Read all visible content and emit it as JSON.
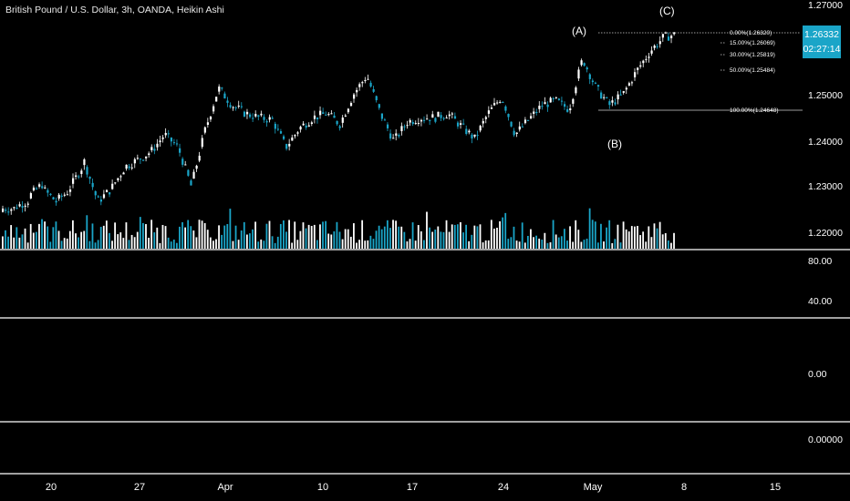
{
  "header": {
    "title": "British Pound / U.S. Dollar, 3h, OANDA, Heikin Ashi"
  },
  "price_badge": {
    "price": "1.26332",
    "countdown": "02:27:14"
  },
  "annotations": {
    "A": "(A)",
    "B": "(B)",
    "C": "(C)"
  },
  "fib_levels": [
    {
      "label": "0.00%(1.26320)",
      "price": 1.2632
    },
    {
      "label": "15.00%(1.26069)",
      "price": 1.26069
    },
    {
      "label": "30.00%(1.25819)",
      "price": 1.25819
    },
    {
      "label": "50.00%(1.25484)",
      "price": 1.25484
    },
    {
      "label": "100.00%(1.24648)",
      "price": 1.24648
    }
  ],
  "price_axis": {
    "ticks": [
      "1.27000",
      "1.25000",
      "1.24000",
      "1.23000",
      "1.22000"
    ]
  },
  "pane2_axis": {
    "ticks": [
      "80.00",
      "40.00"
    ]
  },
  "pane3_axis": {
    "ticks": [
      "0.00"
    ]
  },
  "pane4_axis": {
    "ticks": [
      "0.00000"
    ]
  },
  "time_axis": {
    "ticks": [
      "20",
      "27",
      "Apr",
      "10",
      "17",
      "24",
      "May",
      "8",
      "15"
    ]
  },
  "colors": {
    "up": "#ffffff",
    "down": "#1aa5c8",
    "background": "#000000",
    "separator": "#ffffff"
  },
  "chart_data": {
    "type": "candlestick",
    "chart_style": "Heikin Ashi",
    "symbol": "British Pound / U.S. Dollar",
    "interval": "3h",
    "source": "OANDA",
    "ylim": [
      1.2155,
      1.2705
    ],
    "x": [
      "20",
      "27",
      "Apr",
      "10",
      "17",
      "24",
      "May",
      "8",
      "15"
    ],
    "last_price": 1.26332,
    "swings": [
      {
        "label": "(A)",
        "price": 1.2632
      },
      {
        "label": "(B)",
        "price": 1.2465
      },
      {
        "label": "(C)",
        "price": 1.264
      }
    ],
    "path": [
      [
        1.222,
        1.222
      ],
      [
        1.2225,
        1.224
      ],
      [
        1.225,
        1.228
      ],
      [
        1.2265,
        1.2235
      ],
      [
        1.2238,
        1.2265
      ],
      [
        1.227,
        1.2325
      ],
      [
        1.2335,
        1.224
      ],
      [
        1.2235,
        1.2265
      ],
      [
        1.2265,
        1.2315
      ],
      [
        1.2318,
        1.2335
      ],
      [
        1.2335,
        1.2355
      ],
      [
        1.2355,
        1.2395
      ],
      [
        1.2395,
        1.2365
      ],
      [
        1.2365,
        1.227
      ],
      [
        1.2275,
        1.2405
      ],
      [
        1.2405,
        1.2505
      ],
      [
        1.2505,
        1.2465
      ],
      [
        1.2465,
        1.2445
      ],
      [
        1.2445,
        1.2435
      ],
      [
        1.2435,
        1.243
      ],
      [
        1.243,
        1.2365
      ],
      [
        1.2365,
        1.241
      ],
      [
        1.241,
        1.2435
      ],
      [
        1.2435,
        1.2445
      ],
      [
        1.2445,
        1.242
      ],
      [
        1.242,
        1.249
      ],
      [
        1.249,
        1.2535
      ],
      [
        1.2535,
        1.2445
      ],
      [
        1.2445,
        1.238
      ],
      [
        1.238,
        1.2425
      ],
      [
        1.2425,
        1.2435
      ],
      [
        1.2435,
        1.2435
      ],
      [
        1.2435,
        1.2445
      ],
      [
        1.2445,
        1.2415
      ],
      [
        1.2415,
        1.2385
      ],
      [
        1.2385,
        1.2445
      ],
      [
        1.2445,
        1.2485
      ],
      [
        1.2485,
        1.2395
      ],
      [
        1.2395,
        1.243
      ],
      [
        1.243,
        1.2465
      ],
      [
        1.2465,
        1.2475
      ],
      [
        1.2475,
        1.2455
      ],
      [
        1.2455,
        1.2575
      ],
      [
        1.2575,
        1.2505
      ],
      [
        1.2505,
        1.2465
      ],
      [
        1.2465,
        1.249
      ],
      [
        1.249,
        1.2545
      ],
      [
        1.2545,
        1.2592
      ],
      [
        1.2592,
        1.2625
      ],
      [
        1.2625,
        1.2633
      ]
    ]
  }
}
